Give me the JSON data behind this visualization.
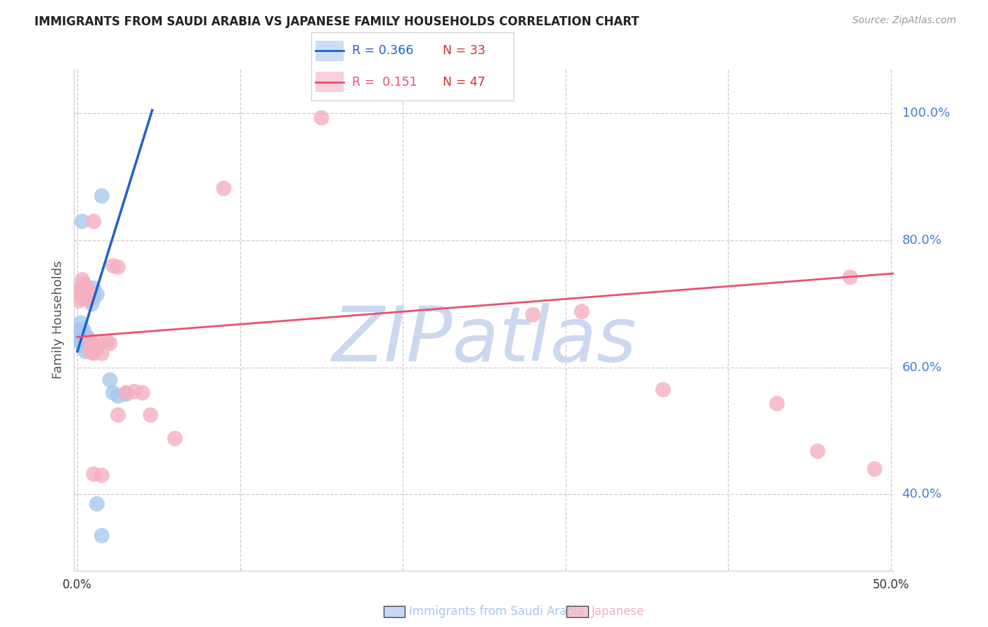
{
  "title": "IMMIGRANTS FROM SAUDI ARABIA VS JAPANESE FAMILY HOUSEHOLDS CORRELATION CHART",
  "source": "Source: ZipAtlas.com",
  "xlabel_blue": "Immigrants from Saudi Arabia",
  "xlabel_pink": "Japanese",
  "ylabel": "Family Households",
  "xmin": -0.002,
  "xmax": 0.502,
  "ymin": 0.28,
  "ymax": 1.07,
  "ytick_vals": [
    0.4,
    0.6,
    0.8,
    1.0
  ],
  "ytick_labels": [
    "40.0%",
    "60.0%",
    "80.0%",
    "100.0%"
  ],
  "xtick_vals": [
    0.0,
    0.1,
    0.2,
    0.3,
    0.4,
    0.5
  ],
  "xtick_show": [
    "0.0%",
    "",
    "",
    "",
    "",
    "50.0%"
  ],
  "legend_blue_R": "0.366",
  "legend_blue_N": "33",
  "legend_pink_R": "0.151",
  "legend_pink_N": "47",
  "blue_points": [
    [
      0.001,
      0.66
    ],
    [
      0.001,
      0.65
    ],
    [
      0.002,
      0.67
    ],
    [
      0.002,
      0.655
    ],
    [
      0.002,
      0.64
    ],
    [
      0.003,
      0.66
    ],
    [
      0.003,
      0.648
    ],
    [
      0.003,
      0.635
    ],
    [
      0.004,
      0.658
    ],
    [
      0.004,
      0.645
    ],
    [
      0.004,
      0.632
    ],
    [
      0.005,
      0.65
    ],
    [
      0.005,
      0.638
    ],
    [
      0.005,
      0.625
    ],
    [
      0.006,
      0.648
    ],
    [
      0.006,
      0.635
    ],
    [
      0.007,
      0.645
    ],
    [
      0.007,
      0.632
    ],
    [
      0.008,
      0.64
    ],
    [
      0.008,
      0.628
    ],
    [
      0.009,
      0.715
    ],
    [
      0.009,
      0.7
    ],
    [
      0.01,
      0.725
    ],
    [
      0.01,
      0.71
    ],
    [
      0.012,
      0.715
    ],
    [
      0.015,
      0.87
    ],
    [
      0.02,
      0.58
    ],
    [
      0.022,
      0.56
    ],
    [
      0.025,
      0.555
    ],
    [
      0.03,
      0.558
    ],
    [
      0.003,
      0.83
    ],
    [
      0.012,
      0.385
    ],
    [
      0.015,
      0.335
    ]
  ],
  "pink_points": [
    [
      0.001,
      0.705
    ],
    [
      0.002,
      0.725
    ],
    [
      0.002,
      0.715
    ],
    [
      0.003,
      0.738
    ],
    [
      0.003,
      0.725
    ],
    [
      0.003,
      0.715
    ],
    [
      0.004,
      0.732
    ],
    [
      0.004,
      0.72
    ],
    [
      0.004,
      0.708
    ],
    [
      0.005,
      0.728
    ],
    [
      0.005,
      0.718
    ],
    [
      0.005,
      0.708
    ],
    [
      0.006,
      0.722
    ],
    [
      0.006,
      0.71
    ],
    [
      0.007,
      0.72
    ],
    [
      0.007,
      0.708
    ],
    [
      0.008,
      0.642
    ],
    [
      0.008,
      0.628
    ],
    [
      0.009,
      0.638
    ],
    [
      0.009,
      0.624
    ],
    [
      0.01,
      0.635
    ],
    [
      0.01,
      0.622
    ],
    [
      0.012,
      0.64
    ],
    [
      0.012,
      0.628
    ],
    [
      0.015,
      0.622
    ],
    [
      0.018,
      0.64
    ],
    [
      0.02,
      0.638
    ],
    [
      0.022,
      0.76
    ],
    [
      0.025,
      0.758
    ],
    [
      0.03,
      0.56
    ],
    [
      0.035,
      0.562
    ],
    [
      0.04,
      0.56
    ],
    [
      0.01,
      0.83
    ],
    [
      0.01,
      0.432
    ],
    [
      0.015,
      0.43
    ],
    [
      0.025,
      0.525
    ],
    [
      0.045,
      0.525
    ],
    [
      0.06,
      0.488
    ],
    [
      0.09,
      0.882
    ],
    [
      0.15,
      0.993
    ],
    [
      0.28,
      0.683
    ],
    [
      0.31,
      0.688
    ],
    [
      0.36,
      0.565
    ],
    [
      0.43,
      0.543
    ],
    [
      0.455,
      0.468
    ],
    [
      0.475,
      0.742
    ],
    [
      0.49,
      0.44
    ]
  ],
  "blue_line_x0": 0.0,
  "blue_line_x1": 0.046,
  "blue_line_y0": 0.625,
  "blue_line_y1": 1.005,
  "pink_line_x0": 0.0,
  "pink_line_x1": 0.502,
  "pink_line_y0": 0.648,
  "pink_line_y1": 0.748,
  "blue_dot_color": "#a8c8f0",
  "pink_dot_color": "#f5b0c0",
  "blue_line_color": "#2060c8",
  "pink_line_color": "#e85070",
  "right_tick_color": "#4080d0",
  "bottom_tick_color": "#333333",
  "grid_color": "#cccccc",
  "watermark_text": "ZIPatlas",
  "watermark_color": "#ccd8ef",
  "title_color": "#222222",
  "source_color": "#999999",
  "ylabel_color": "#555555",
  "legend_N_color": "#cc3333",
  "spine_color": "#cccccc"
}
